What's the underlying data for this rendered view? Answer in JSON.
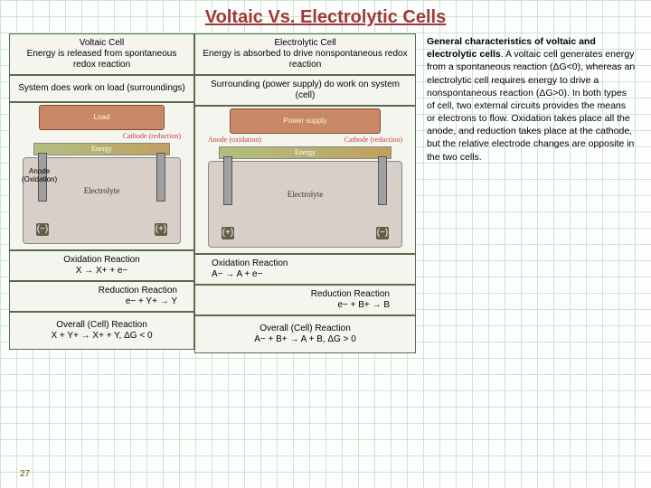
{
  "title": "Voltaic Vs. Electrolytic Cells",
  "left": {
    "head": "Voltaic Cell\nEnergy is released from spontaneous redox reaction",
    "sys": "System does work on load (surroundings)",
    "device": "Load",
    "anodeLab": "Anode",
    "cathodeLab": "Cathode (reduction)",
    "energy": "Energy",
    "electrolyte": "Electrolyte",
    "signL": "(−)",
    "signR": "(+)",
    "ox": "Oxidation Reaction\nX  →  X+  +  e−",
    "red": "Reduction Reaction\ne−  +  Y+  →  Y",
    "overall": "Overall (Cell) Reaction\nX  +  Y+  →  X+  +  Y,   ΔG < 0"
  },
  "right": {
    "head": "Electrolytic Cell\nEnergy is absorbed to drive nonspontaneous redox reaction",
    "sys": "Surrounding (power supply) do work on system (cell)",
    "device": "Power supply",
    "anodeLab": "Anode (oxidation)",
    "cathodeLab": "Cathode (reduction)",
    "energy": "Energy",
    "electrolyte": "Electrolyte",
    "signL": "(+)",
    "signR": "(−)",
    "ox": "Oxidation Reaction\nA−  →  A  +  e−",
    "red": "Reduction Reaction\ne−  +  B+  →  B",
    "overall": "Overall (Cell) Reaction\nA−  +  B+  →  A  +  B,   ΔG > 0"
  },
  "anodeSide": "Anode\n(Oxidation)",
  "side": "General characteristics of voltaic and electrolytic cells.  A voltaic cell generates energy from a spontaneous reaction (ΔG<0), whereas an electrolytic cell requires energy to drive a nonspontaneous reaction (ΔG>0).  In both types of cell, two external circuits provides the means or electrons to flow.  Oxidation takes place all the anode, and reduction takes place at the cathode, but the relative electrode changes are opposite in the two cells.",
  "sideBold": "General characteristics of voltaic and electrolytic cells",
  "pageNum": "27"
}
